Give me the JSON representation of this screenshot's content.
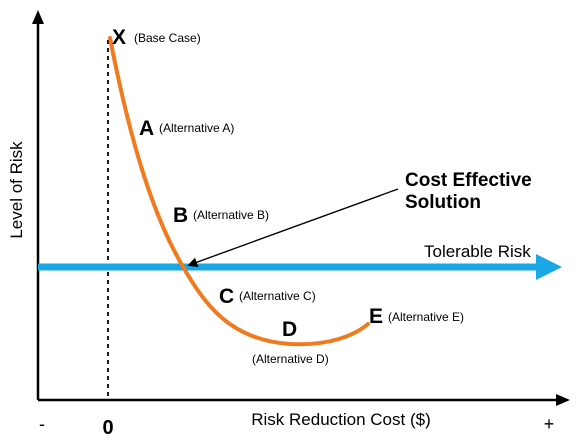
{
  "diagram": {
    "y_axis_label": "Level of Risk",
    "x_axis_label": "Risk Reduction Cost ($)",
    "x_minus_label": "-",
    "x_zero_label": "0",
    "x_plus_label": "+",
    "tolerable_risk_label": "Tolerable Risk",
    "callout_line1": "Cost Effective",
    "callout_line2": "Solution",
    "points": [
      {
        "letter": "X",
        "caption": "(Base Case)"
      },
      {
        "letter": "A",
        "caption": "(Alternative A)"
      },
      {
        "letter": "B",
        "caption": "(Alternative B)"
      },
      {
        "letter": "C",
        "caption": "(Alternative C)"
      },
      {
        "letter": "D",
        "caption": "(Alternative D)"
      },
      {
        "letter": "E",
        "caption": "(Alternative E)"
      }
    ],
    "colors": {
      "curve": "#f07b1f",
      "tolerable_line": "#1aa7e6",
      "axes": "#000000",
      "text": "#000000"
    }
  }
}
